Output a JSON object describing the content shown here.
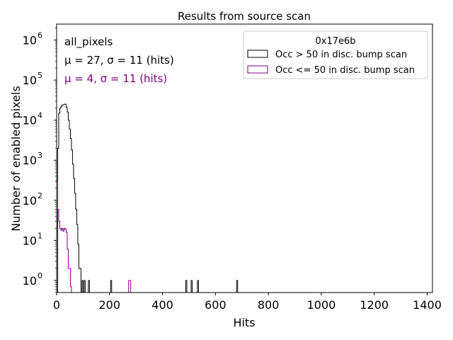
{
  "chart_data": {
    "type": "step-histogram",
    "title": "Results from source scan",
    "xlabel": "Hits",
    "ylabel": "Number of enabled pixels",
    "xlim": [
      0,
      1420
    ],
    "ylim": [
      0.5,
      2500000
    ],
    "yscale": "log",
    "x_ticks": [
      0,
      200,
      400,
      600,
      800,
      1000,
      1200,
      1400
    ],
    "x_tick_labels": [
      "0",
      "200",
      "400",
      "600",
      "800",
      "1000",
      "1200",
      "1400"
    ],
    "y_ticks": [
      1,
      10,
      100,
      1000,
      10000,
      100000,
      1000000
    ],
    "y_tick_labels": [
      {
        "base": "10",
        "exp": "0"
      },
      {
        "base": "10",
        "exp": "1"
      },
      {
        "base": "10",
        "exp": "2"
      },
      {
        "base": "10",
        "exp": "3"
      },
      {
        "base": "10",
        "exp": "4"
      },
      {
        "base": "10",
        "exp": "5"
      },
      {
        "base": "10",
        "exp": "6"
      }
    ],
    "annotations": {
      "line1": "all_pixels",
      "line2_black": "μ = 27, σ = 11 (hits)",
      "line3_purple": "μ = 4, σ = 11 (hits)"
    },
    "legend": {
      "title": "0x17e6b",
      "placement": "upper-right",
      "entries": [
        "Occ > 50 in disc. bump scan",
        "Occ <= 50 in disc. bump scan"
      ]
    },
    "series": [
      {
        "name": "Occ > 50 in disc. bump scan",
        "color": "#000000",
        "bins": [
          [
            4,
            8,
            2000
          ],
          [
            8,
            12,
            15000
          ],
          [
            12,
            16,
            20000
          ],
          [
            16,
            20,
            22000
          ],
          [
            20,
            24,
            24000
          ],
          [
            24,
            28,
            24000
          ],
          [
            28,
            32,
            25000
          ],
          [
            32,
            36,
            25000
          ],
          [
            36,
            40,
            21000
          ],
          [
            40,
            44,
            16000
          ],
          [
            44,
            48,
            10000
          ],
          [
            48,
            52,
            6000
          ],
          [
            52,
            56,
            3500
          ],
          [
            56,
            60,
            1800
          ],
          [
            60,
            64,
            800
          ],
          [
            64,
            68,
            350
          ],
          [
            68,
            72,
            150
          ],
          [
            72,
            76,
            60
          ],
          [
            76,
            80,
            25
          ],
          [
            80,
            84,
            8
          ],
          [
            84,
            88,
            2
          ],
          [
            88,
            92,
            2
          ],
          [
            96,
            100,
            1
          ],
          [
            104,
            108,
            1
          ],
          [
            120,
            124,
            1
          ],
          [
            204,
            208,
            1
          ],
          [
            488,
            492,
            1
          ],
          [
            508,
            512,
            1
          ],
          [
            532,
            536,
            1
          ],
          [
            680,
            684,
            1
          ]
        ]
      },
      {
        "name": "Occ <= 50 in disc. bump scan",
        "color": "#800080",
        "bins": [
          [
            0,
            4,
            300
          ],
          [
            4,
            8,
            60
          ],
          [
            8,
            12,
            30
          ],
          [
            12,
            16,
            20
          ],
          [
            16,
            20,
            18
          ],
          [
            20,
            24,
            20
          ],
          [
            24,
            28,
            17
          ],
          [
            28,
            32,
            20
          ],
          [
            32,
            36,
            19
          ],
          [
            36,
            40,
            16
          ],
          [
            40,
            44,
            6
          ],
          [
            44,
            48,
            2
          ],
          [
            48,
            52,
            2
          ],
          [
            52,
            56,
            0.7
          ],
          [
            272,
            276,
            1
          ],
          [
            276,
            280,
            1
          ]
        ]
      }
    ]
  }
}
